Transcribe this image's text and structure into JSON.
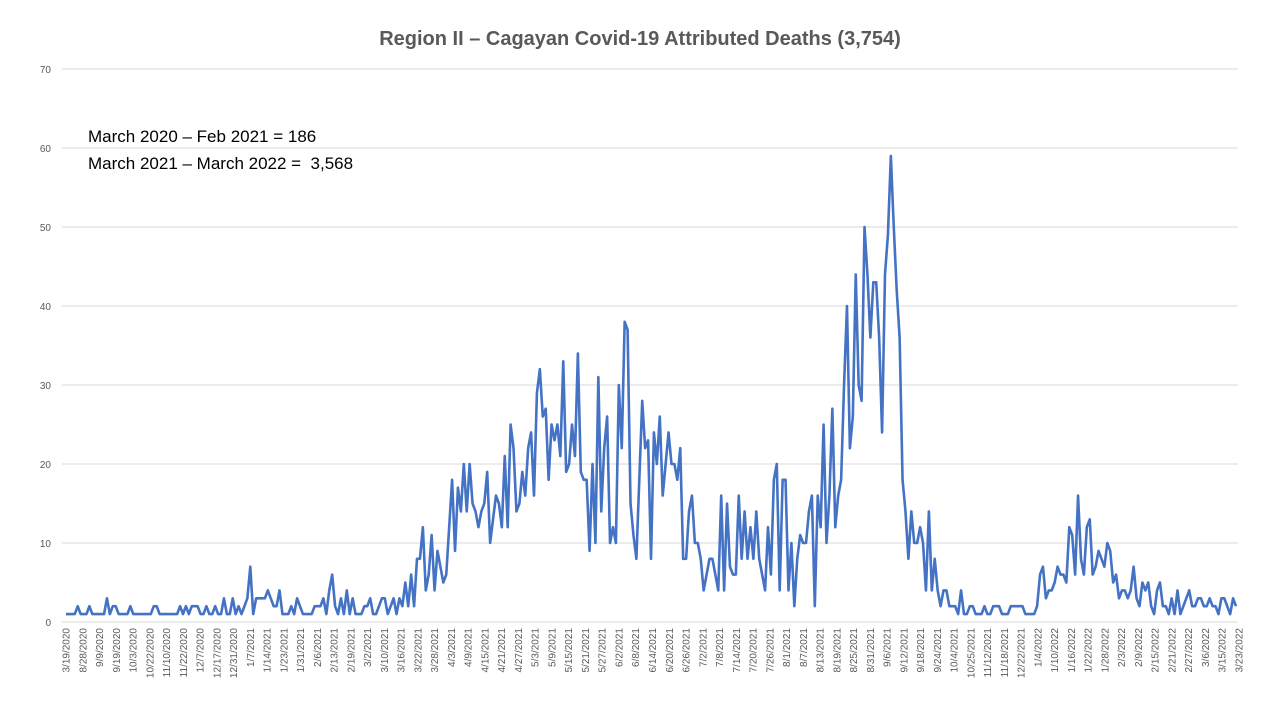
{
  "chart_data": {
    "type": "line",
    "title": "Region II – Cagayan Covid-19 Attributed Deaths (3,754)",
    "xlabel": "",
    "ylabel": "",
    "ylim": [
      0,
      70
    ],
    "yticks": [
      0,
      10,
      20,
      30,
      40,
      50,
      60,
      70
    ],
    "grid": true,
    "line_color": "#4472C4",
    "grid_color": "#d9d9d9",
    "annotations": [
      "March 2020 – Feb 2021 = 186",
      "March 2021 – March 2022 =  3,568"
    ],
    "x_tick_labels": [
      "3/19/2020",
      "8/28/2020",
      "9/9/2020",
      "9/19/2020",
      "10/3/2020",
      "10/22/2020",
      "11/10/2020",
      "11/22/2020",
      "12/7/2020",
      "12/17/2020",
      "12/31/2020",
      "1/7/2021",
      "1/14/2021",
      "1/23/2021",
      "1/31/2021",
      "2/6/2021",
      "2/13/2021",
      "2/19/2021",
      "3/2/2021",
      "3/10/2021",
      "3/16/2021",
      "3/22/2021",
      "3/28/2021",
      "4/3/2021",
      "4/9/2021",
      "4/15/2021",
      "4/21/2021",
      "4/27/2021",
      "5/3/2021",
      "5/9/2021",
      "5/15/2021",
      "5/21/2021",
      "5/27/2021",
      "6/2/2021",
      "6/8/2021",
      "6/14/2021",
      "6/20/2021",
      "6/26/2021",
      "7/2/2021",
      "7/8/2021",
      "7/14/2021",
      "7/20/2021",
      "7/26/2021",
      "8/1/2021",
      "8/7/2021",
      "8/13/2021",
      "8/19/2021",
      "8/25/2021",
      "8/31/2021",
      "9/6/2021",
      "9/12/2021",
      "9/18/2021",
      "9/24/2021",
      "10/4/2021",
      "10/25/2021",
      "11/12/2021",
      "11/18/2021",
      "12/22/2021",
      "1/4/2022",
      "1/10/2022",
      "1/16/2022",
      "1/22/2022",
      "1/28/2022",
      "2/3/2022",
      "2/9/2022",
      "2/15/2022",
      "2/21/2022",
      "2/27/2022",
      "3/6/2022",
      "3/15/2022",
      "3/23/2022"
    ],
    "series": [
      {
        "values": [
          1,
          1,
          1,
          1,
          2,
          1,
          1,
          1,
          2,
          1,
          1,
          1,
          1,
          1,
          3,
          1,
          2,
          2,
          1,
          1,
          1,
          1,
          2,
          1,
          1,
          1,
          1,
          1,
          1,
          1,
          2,
          2,
          1,
          1,
          1,
          1,
          1,
          1,
          1,
          2,
          1,
          2,
          1,
          2,
          2,
          2,
          1,
          1,
          2,
          1,
          1,
          2,
          1,
          1,
          3,
          1,
          1,
          3,
          1,
          2,
          1,
          2,
          3,
          7,
          1,
          3,
          3,
          3,
          3,
          4,
          3,
          2,
          2,
          4,
          1,
          1,
          1,
          2,
          1,
          3,
          2,
          1,
          1,
          1,
          1,
          2,
          2,
          2,
          3,
          1,
          4,
          6,
          2,
          1,
          3,
          1,
          4,
          1,
          3,
          1,
          1,
          1,
          2,
          2,
          3,
          1,
          1,
          2,
          3,
          3,
          1,
          2,
          3,
          1,
          3,
          2,
          5,
          2,
          6,
          2,
          8,
          8,
          12,
          4,
          6,
          11,
          4,
          9,
          7,
          5,
          6,
          12,
          18,
          9,
          17,
          14,
          20,
          14,
          20,
          15,
          14,
          12,
          14,
          15,
          19,
          10,
          13,
          16,
          15,
          12,
          21,
          12,
          25,
          22,
          14,
          15,
          19,
          16,
          22,
          24,
          16,
          29,
          32,
          26,
          27,
          18,
          25,
          23,
          25,
          21,
          33,
          19,
          20,
          25,
          21,
          34,
          19,
          18,
          18,
          9,
          20,
          10,
          31,
          14,
          22,
          26,
          10,
          12,
          10,
          30,
          22,
          38,
          37,
          15,
          11,
          8,
          18,
          28,
          22,
          23,
          8,
          24,
          20,
          26,
          16,
          20,
          24,
          20,
          20,
          18,
          22,
          8,
          8,
          14,
          16,
          10,
          10,
          8,
          4,
          6,
          8,
          8,
          6,
          4,
          16,
          4,
          15,
          7,
          6,
          6,
          16,
          8,
          14,
          8,
          12,
          8,
          14,
          8,
          6,
          4,
          12,
          6,
          18,
          20,
          4,
          18,
          18,
          4,
          10,
          2,
          8,
          11,
          10,
          10,
          14,
          16,
          2,
          16,
          12,
          25,
          10,
          16,
          27,
          12,
          16,
          18,
          30,
          40,
          22,
          26,
          44,
          30,
          28,
          50,
          44,
          36,
          43,
          43,
          36,
          24,
          44,
          49,
          59,
          50,
          42,
          36,
          18,
          14,
          8,
          14,
          10,
          10,
          12,
          10,
          4,
          14,
          4,
          8,
          4,
          2,
          4,
          4,
          2,
          2,
          2,
          1,
          4,
          1,
          1,
          2,
          2,
          1,
          1,
          1,
          2,
          1,
          1,
          2,
          2,
          2,
          1,
          1,
          1,
          2,
          2,
          2,
          2,
          2,
          1,
          1,
          1,
          1,
          2,
          6,
          7,
          3,
          4,
          4,
          5,
          7,
          6,
          6,
          5,
          12,
          11,
          6,
          16,
          8,
          6,
          12,
          13,
          6,
          7,
          9,
          8,
          7,
          10,
          9,
          5,
          6,
          3,
          4,
          4,
          3,
          4,
          7,
          3,
          2,
          5,
          4,
          5,
          2,
          1,
          4,
          5,
          2,
          2,
          1,
          3,
          1,
          4,
          1,
          2,
          3,
          4,
          2,
          2,
          3,
          3,
          2,
          2,
          3,
          2,
          2,
          1,
          3,
          3,
          2,
          1,
          3,
          2
        ]
      }
    ]
  }
}
